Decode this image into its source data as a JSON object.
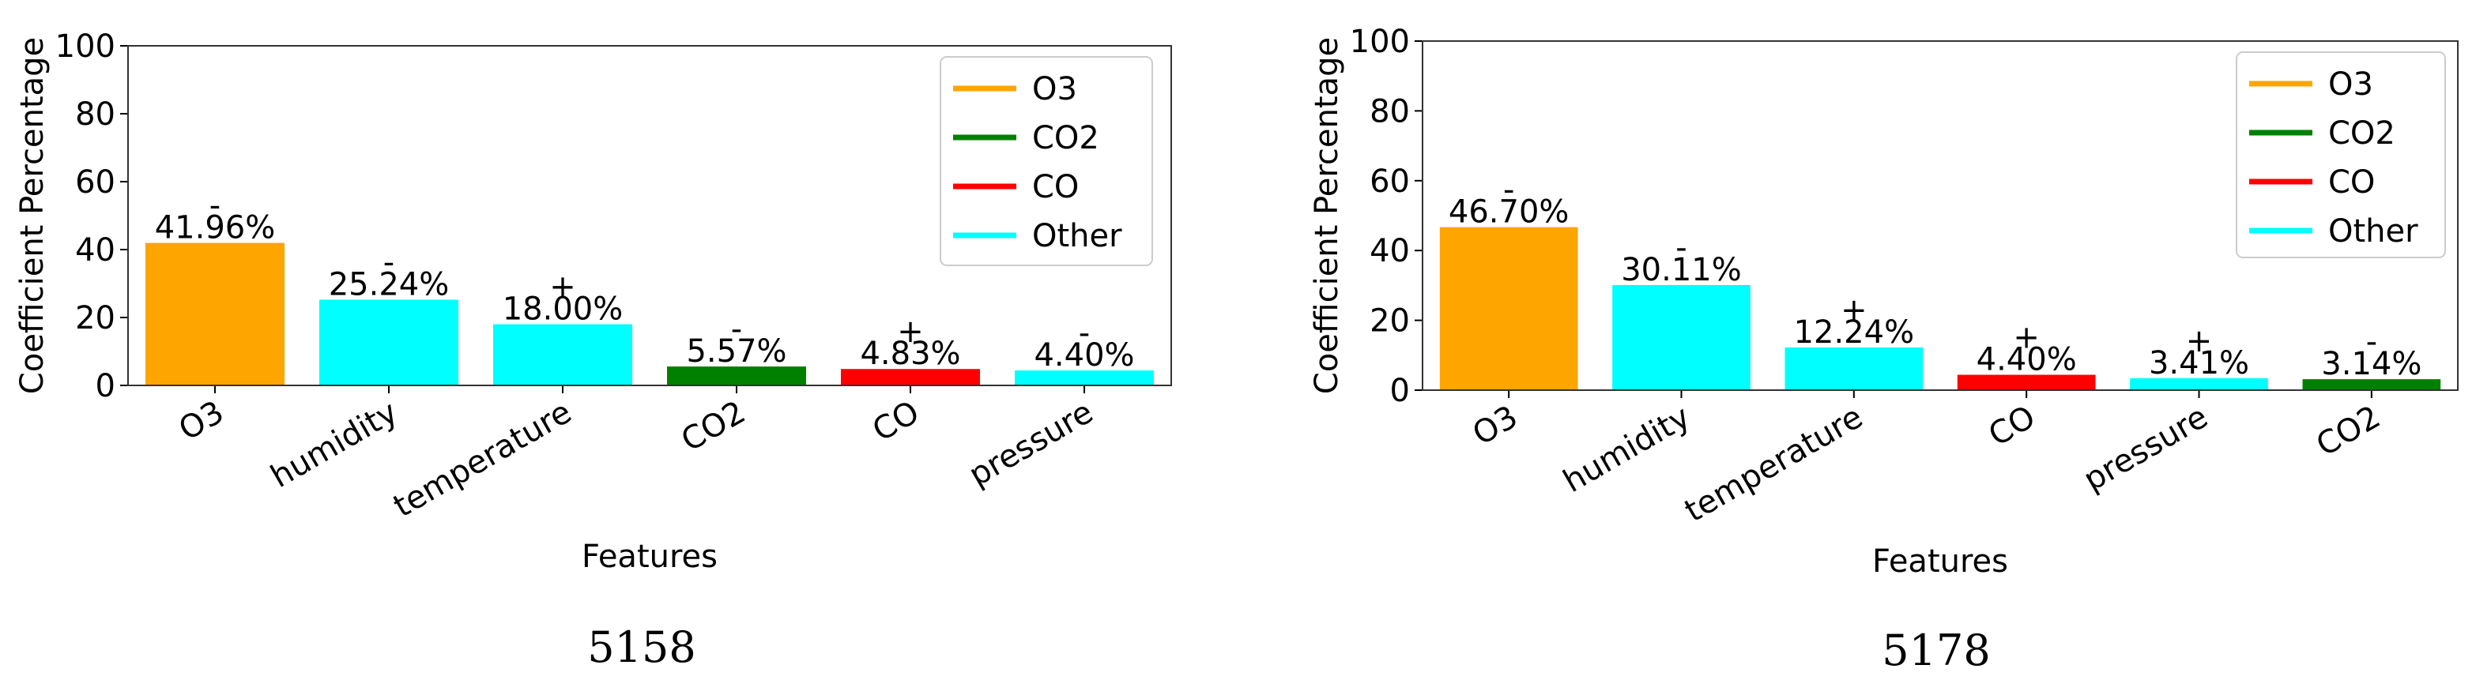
{
  "chart_data": [
    {
      "type": "bar",
      "caption": "5158",
      "xlabel": "Features",
      "ylabel": "Coefficient Percentage",
      "ylim": [
        0,
        100
      ],
      "yticks": [
        0,
        20,
        40,
        60,
        80,
        100
      ],
      "categories": [
        "O3",
        "humidity",
        "temperature",
        "CO2",
        "CO",
        "pressure"
      ],
      "values": [
        41.96,
        25.24,
        18.0,
        5.57,
        4.83,
        4.4
      ],
      "value_labels": [
        "41.96%",
        "25.24%",
        "18.00%",
        "5.57%",
        "4.83%",
        "4.40%"
      ],
      "signs": [
        "-",
        "-",
        "+",
        "-",
        "+",
        "-"
      ],
      "groups": [
        "O3",
        "Other",
        "Other",
        "CO2",
        "CO",
        "Other"
      ],
      "legend": {
        "position": "top-right",
        "entries": [
          {
            "label": "O3",
            "color": "#FFA500"
          },
          {
            "label": "CO2",
            "color": "#008000"
          },
          {
            "label": "CO",
            "color": "#FF0000"
          },
          {
            "label": "Other",
            "color": "#00FFFF"
          }
        ]
      }
    },
    {
      "type": "bar",
      "caption": "5178",
      "xlabel": "Features",
      "ylabel": "Coefficient Percentage",
      "ylim": [
        0,
        100
      ],
      "yticks": [
        0,
        20,
        40,
        60,
        80,
        100
      ],
      "categories": [
        "O3",
        "humidity",
        "temperature",
        "CO",
        "pressure",
        "CO2"
      ],
      "values": [
        46.7,
        30.11,
        12.24,
        4.4,
        3.41,
        3.14
      ],
      "value_labels": [
        "46.70%",
        "30.11%",
        "12.24%",
        "4.40%",
        "3.41%",
        "3.14%"
      ],
      "signs": [
        "-",
        "-",
        "+",
        "+",
        "+",
        "-"
      ],
      "groups": [
        "O3",
        "Other",
        "Other",
        "CO",
        "Other",
        "CO2"
      ],
      "legend": {
        "position": "top-right",
        "entries": [
          {
            "label": "O3",
            "color": "#FFA500"
          },
          {
            "label": "CO2",
            "color": "#008000"
          },
          {
            "label": "CO",
            "color": "#FF0000"
          },
          {
            "label": "Other",
            "color": "#00FFFF"
          }
        ]
      }
    }
  ]
}
